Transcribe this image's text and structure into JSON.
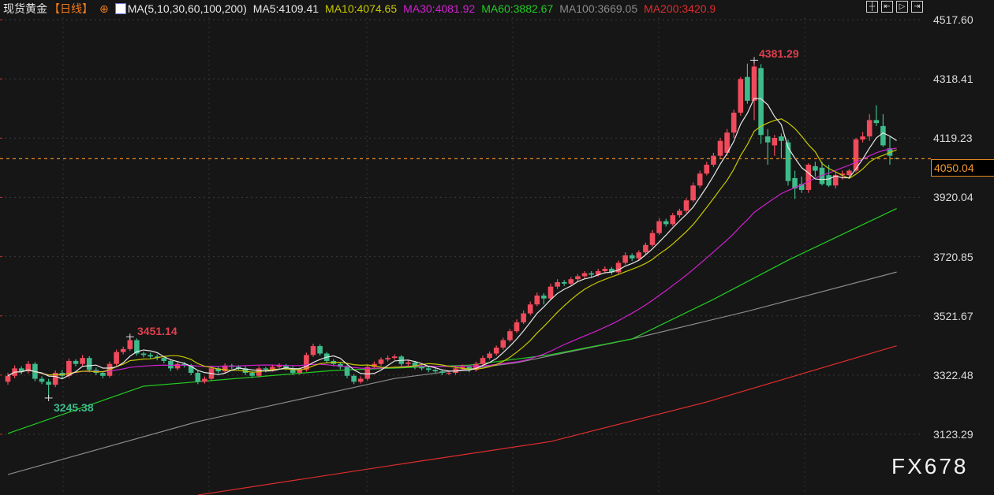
{
  "header": {
    "title": "现货黄金",
    "period": "【日线】",
    "ma_label": "MA(5,10,30,60,100,200)",
    "ma_values": [
      {
        "text": "MA5:4109.41",
        "color": "#e6e6e6"
      },
      {
        "text": "MA10:4074.65",
        "color": "#c8c800"
      },
      {
        "text": "MA30:4081.92",
        "color": "#d020d0"
      },
      {
        "text": "MA60:3882.67",
        "color": "#22cc22"
      },
      {
        "text": "MA100:3669.05",
        "color": "#8a8a8a"
      },
      {
        "text": "MA200:3420.9",
        "color": "#e02c2c"
      }
    ]
  },
  "toolbar": {
    "icons": [
      "crosshair-icon",
      "jump-start-icon",
      "step-back-icon",
      "jump-end-icon"
    ]
  },
  "watermark": "FX678",
  "chart_data": {
    "type": "candlestick",
    "ylim": [
      3123.29,
      4517.6
    ],
    "y_ticks": [
      "4517.60",
      "4318.41",
      "4119.23",
      "3920.04",
      "3720.85",
      "3521.67",
      "3322.48",
      "3123.29"
    ],
    "grid": true,
    "current_price": "4050.04",
    "annotations": {
      "high": "4381.29",
      "high_index": 110,
      "low": "3245.38",
      "low_index": 6,
      "local_high": "3451.14",
      "local_high_index": 18
    },
    "colors": {
      "up": "#f04b5c",
      "down": "#3dbb8a",
      "ma5": "#e6e6e6",
      "ma10": "#c8c800",
      "ma30": "#d020d0",
      "ma60": "#22cc22",
      "ma100": "#8a8a8a",
      "ma200": "#e02c2c",
      "current": "#e98a1f"
    },
    "candles_ohlc": [
      [
        3300,
        3330,
        3290,
        3320
      ],
      [
        3320,
        3355,
        3312,
        3345
      ],
      [
        3345,
        3352,
        3325,
        3335
      ],
      [
        3335,
        3370,
        3328,
        3360
      ],
      [
        3360,
        3366,
        3302,
        3310
      ],
      [
        3310,
        3318,
        3292,
        3300
      ],
      [
        3300,
        3310,
        3245.38,
        3290
      ],
      [
        3290,
        3338,
        3282,
        3330
      ],
      [
        3330,
        3340,
        3312,
        3320
      ],
      [
        3320,
        3378,
        3314,
        3370
      ],
      [
        3370,
        3376,
        3352,
        3360
      ],
      [
        3360,
        3390,
        3354,
        3380
      ],
      [
        3380,
        3386,
        3332,
        3340
      ],
      [
        3340,
        3348,
        3322,
        3330
      ],
      [
        3330,
        3336,
        3312,
        3320
      ],
      [
        3320,
        3368,
        3314,
        3360
      ],
      [
        3360,
        3408,
        3354,
        3400
      ],
      [
        3400,
        3418,
        3392,
        3410
      ],
      [
        3410,
        3451.14,
        3404,
        3440
      ],
      [
        3440,
        3446,
        3388,
        3395
      ],
      [
        3395,
        3402,
        3382,
        3390
      ],
      [
        3390,
        3398,
        3378,
        3385
      ],
      [
        3385,
        3392,
        3372,
        3380
      ],
      [
        3380,
        3386,
        3362,
        3370
      ],
      [
        3370,
        3376,
        3336,
        3345
      ],
      [
        3345,
        3368,
        3338,
        3360
      ],
      [
        3360,
        3366,
        3348,
        3355
      ],
      [
        3355,
        3360,
        3322,
        3330
      ],
      [
        3330,
        3336,
        3292,
        3300
      ],
      [
        3300,
        3318,
        3294,
        3310
      ],
      [
        3310,
        3352,
        3304,
        3345
      ],
      [
        3345,
        3350,
        3328,
        3335
      ],
      [
        3335,
        3362,
        3328,
        3355
      ],
      [
        3355,
        3360,
        3342,
        3350
      ],
      [
        3350,
        3356,
        3338,
        3345
      ],
      [
        3345,
        3352,
        3322,
        3330
      ],
      [
        3330,
        3336,
        3312,
        3320
      ],
      [
        3320,
        3352,
        3314,
        3345
      ],
      [
        3345,
        3350,
        3332,
        3340
      ],
      [
        3340,
        3358,
        3334,
        3350
      ],
      [
        3350,
        3362,
        3344,
        3355
      ],
      [
        3355,
        3360,
        3338,
        3345
      ],
      [
        3345,
        3352,
        3322,
        3330
      ],
      [
        3330,
        3348,
        3324,
        3340
      ],
      [
        3340,
        3398,
        3334,
        3390
      ],
      [
        3390,
        3428,
        3384,
        3420
      ],
      [
        3420,
        3426,
        3388,
        3395
      ],
      [
        3395,
        3400,
        3362,
        3370
      ],
      [
        3370,
        3376,
        3352,
        3360
      ],
      [
        3360,
        3366,
        3342,
        3350
      ],
      [
        3350,
        3356,
        3312,
        3320
      ],
      [
        3320,
        3326,
        3292,
        3300
      ],
      [
        3300,
        3318,
        3294,
        3310
      ],
      [
        3310,
        3358,
        3304,
        3350
      ],
      [
        3350,
        3368,
        3344,
        3360
      ],
      [
        3360,
        3382,
        3354,
        3375
      ],
      [
        3375,
        3388,
        3368,
        3380
      ],
      [
        3380,
        3392,
        3374,
        3385
      ],
      [
        3385,
        3390,
        3352,
        3360
      ],
      [
        3360,
        3372,
        3354,
        3365
      ],
      [
        3365,
        3370,
        3342,
        3350
      ],
      [
        3350,
        3356,
        3338,
        3345
      ],
      [
        3345,
        3350,
        3332,
        3340
      ],
      [
        3340,
        3346,
        3328,
        3335
      ],
      [
        3335,
        3340,
        3322,
        3330
      ],
      [
        3330,
        3338,
        3322,
        3330
      ],
      [
        3330,
        3352,
        3324,
        3345
      ],
      [
        3345,
        3358,
        3338,
        3350
      ],
      [
        3350,
        3356,
        3332,
        3340
      ],
      [
        3340,
        3368,
        3334,
        3360
      ],
      [
        3360,
        3388,
        3354,
        3380
      ],
      [
        3380,
        3402,
        3374,
        3395
      ],
      [
        3395,
        3422,
        3388,
        3415
      ],
      [
        3415,
        3448,
        3408,
        3440
      ],
      [
        3440,
        3478,
        3434,
        3470
      ],
      [
        3470,
        3510,
        3464,
        3500
      ],
      [
        3500,
        3540,
        3494,
        3530
      ],
      [
        3530,
        3570,
        3524,
        3560
      ],
      [
        3560,
        3600,
        3554,
        3590
      ],
      [
        3590,
        3598,
        3560,
        3580
      ],
      [
        3580,
        3630,
        3574,
        3620
      ],
      [
        3620,
        3645,
        3612,
        3635
      ],
      [
        3635,
        3642,
        3622,
        3630
      ],
      [
        3630,
        3652,
        3624,
        3645
      ],
      [
        3645,
        3662,
        3638,
        3655
      ],
      [
        3655,
        3672,
        3648,
        3665
      ],
      [
        3665,
        3672,
        3652,
        3660
      ],
      [
        3660,
        3680,
        3654,
        3672
      ],
      [
        3672,
        3688,
        3666,
        3680
      ],
      [
        3680,
        3686,
        3660,
        3668
      ],
      [
        3668,
        3708,
        3662,
        3700
      ],
      [
        3700,
        3735,
        3694,
        3725
      ],
      [
        3725,
        3732,
        3706,
        3715
      ],
      [
        3715,
        3742,
        3708,
        3735
      ],
      [
        3735,
        3768,
        3728,
        3760
      ],
      [
        3760,
        3810,
        3754,
        3800
      ],
      [
        3800,
        3850,
        3794,
        3840
      ],
      [
        3840,
        3848,
        3822,
        3830
      ],
      [
        3830,
        3868,
        3824,
        3860
      ],
      [
        3860,
        3882,
        3852,
        3875
      ],
      [
        3875,
        3918,
        3868,
        3910
      ],
      [
        3910,
        3970,
        3904,
        3960
      ],
      [
        3960,
        4010,
        3952,
        4000
      ],
      [
        4000,
        4040,
        3994,
        4030
      ],
      [
        4030,
        4070,
        4022,
        4060
      ],
      [
        4060,
        4120,
        4052,
        4110
      ],
      [
        4070,
        4150,
        4060,
        4138
      ],
      [
        4138,
        4215,
        4120,
        4205
      ],
      [
        4205,
        4325,
        4195,
        4318
      ],
      [
        4325,
        4370,
        4235,
        4245
      ],
      [
        4245,
        4381.29,
        4180,
        4360
      ],
      [
        4355,
        4368,
        4100,
        4130
      ],
      [
        4125,
        4150,
        4030,
        4105
      ],
      [
        4095,
        4130,
        4060,
        4120
      ],
      [
        4125,
        4135,
        4050,
        4110
      ],
      [
        4105,
        4115,
        3960,
        3975
      ],
      [
        3985,
        4010,
        3915,
        3950
      ],
      [
        3965,
        3990,
        3935,
        3945
      ],
      [
        3945,
        4035,
        3935,
        4030
      ],
      [
        4025,
        4040,
        3990,
        4010
      ],
      [
        4020,
        4040,
        3960,
        3965
      ],
      [
        3995,
        4030,
        3955,
        3960
      ],
      [
        3960,
        4005,
        3950,
        3995
      ],
      [
        3995,
        4010,
        3980,
        4000
      ],
      [
        3995,
        4015,
        3990,
        4010
      ],
      [
        4010,
        4120,
        4005,
        4115
      ],
      [
        4115,
        4140,
        4105,
        4125
      ],
      [
        4125,
        4200,
        4110,
        4180
      ],
      [
        4180,
        4230,
        4160,
        4170
      ],
      [
        4160,
        4200,
        4090,
        4095
      ],
      [
        4085,
        4125,
        4030,
        4060
      ],
      [
        4052,
        4054,
        4048,
        4050
      ]
    ],
    "ma_long_knots": {
      "ma60": [
        [
          0,
          3126
        ],
        [
          20,
          3285
        ],
        [
          48,
          3338
        ],
        [
          68,
          3356
        ],
        [
          80,
          3391
        ],
        [
          92,
          3444
        ],
        [
          104,
          3577
        ],
        [
          115,
          3709
        ],
        [
          131,
          3882.67
        ]
      ],
      "ma100": [
        [
          0,
          2988
        ],
        [
          28,
          3166
        ],
        [
          57,
          3311
        ],
        [
          75,
          3364
        ],
        [
          92,
          3444
        ],
        [
          109,
          3537
        ],
        [
          131,
          3669.05
        ]
      ],
      "ma200": [
        [
          28,
          2919
        ],
        [
          57,
          3020
        ],
        [
          80,
          3099
        ],
        [
          103,
          3232
        ],
        [
          131,
          3420.9
        ]
      ]
    }
  }
}
